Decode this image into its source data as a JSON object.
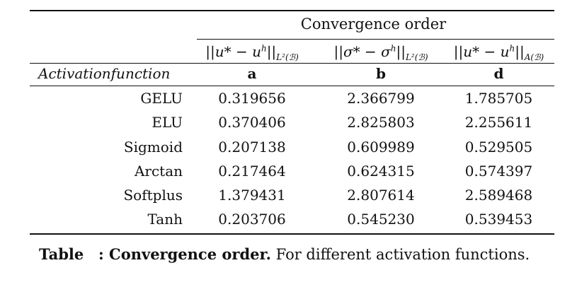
{
  "table": {
    "group_header": "Convergence order",
    "column_headers": [
      {
        "main": "||u* − u",
        "sup": "h",
        "tail": "||",
        "sub": "L²(ℬ)"
      },
      {
        "main": "||σ* − σ",
        "sup": "h",
        "tail": "||",
        "sub": "L²(ℬ)"
      },
      {
        "main": "||u* − u",
        "sup": "h",
        "tail": "||",
        "sub": "A(ℬ)"
      }
    ],
    "label_row": {
      "first": "Activationfunction",
      "labels": [
        "a",
        "b",
        "d"
      ]
    },
    "rows": [
      {
        "name": "GELU",
        "values": [
          "0.319656",
          "2.366799",
          "1.785705"
        ]
      },
      {
        "name": "ELU",
        "values": [
          "0.370406",
          "2.825803",
          "2.255611"
        ]
      },
      {
        "name": "Sigmoid",
        "values": [
          "0.207138",
          "0.609989",
          "0.529505"
        ]
      },
      {
        "name": "Arctan",
        "values": [
          "0.217464",
          "0.624315",
          "0.574397"
        ]
      },
      {
        "name": "Softplus",
        "values": [
          "1.379431",
          "2.807614",
          "2.589468"
        ]
      },
      {
        "name": "Tanh",
        "values": [
          "0.203706",
          "0.545230",
          "0.539453"
        ]
      }
    ]
  },
  "caption": {
    "prefix": "Table",
    "bold": ": Convergence order.",
    "rest": "For different activation functions."
  }
}
